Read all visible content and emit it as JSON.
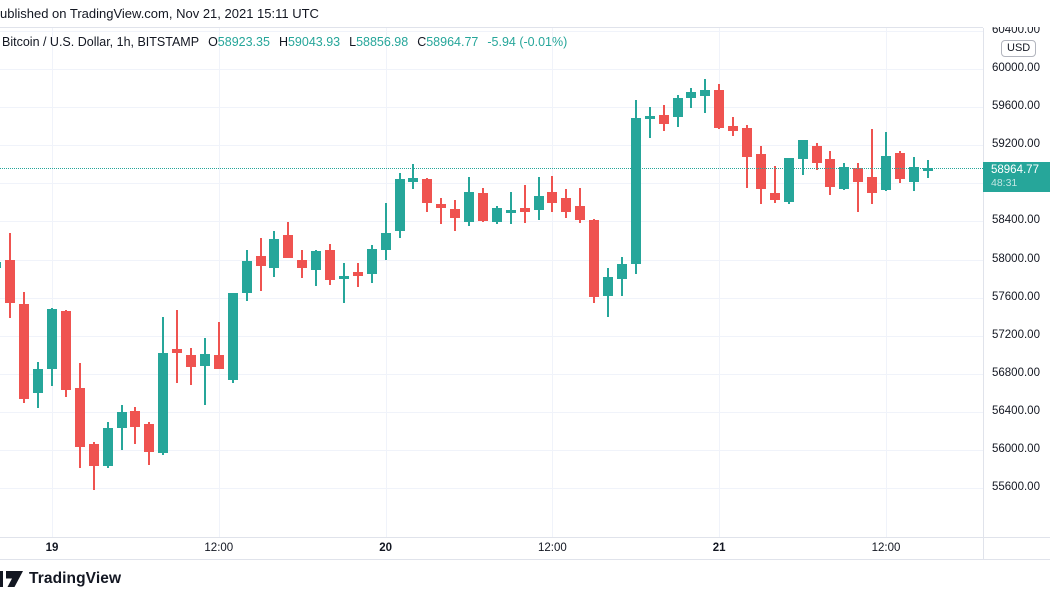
{
  "header": {
    "published_line": "ublished on TradingView.com, Nov 21, 2021 15:11 UTC",
    "symbol_line": "Bitcoin / U.S. Dollar, 1h, BITSTAMP",
    "ohlc": [
      {
        "label": "O",
        "value": "58923.35"
      },
      {
        "label": "H",
        "value": "59043.93"
      },
      {
        "label": "L",
        "value": "58856.98"
      },
      {
        "label": "C",
        "value": "58964.77"
      }
    ],
    "change": "-5.94 (-0.01%)"
  },
  "price_axis": {
    "currency_badge": "USD",
    "labels": [
      {
        "text": "60400.00",
        "price": 60400
      },
      {
        "text": "60000.00",
        "price": 60000
      },
      {
        "text": "59600.00",
        "price": 59600
      },
      {
        "text": "59200.00",
        "price": 59200
      },
      {
        "text": "58400.00",
        "price": 58400
      },
      {
        "text": "58000.00",
        "price": 58000
      },
      {
        "text": "57600.00",
        "price": 57600
      },
      {
        "text": "57200.00",
        "price": 57200
      },
      {
        "text": "56800.00",
        "price": 56800
      },
      {
        "text": "56400.00",
        "price": 56400
      },
      {
        "text": "56000.00",
        "price": 56000
      },
      {
        "text": "55600.00",
        "price": 55600
      }
    ],
    "price_tag": {
      "price": "58964.77",
      "countdown": "48:31"
    }
  },
  "time_axis": {
    "labels": [
      {
        "text": "19",
        "candle_index": 4,
        "bold": true
      },
      {
        "text": "12:00",
        "candle_index": 16,
        "bold": false
      },
      {
        "text": "20",
        "candle_index": 28,
        "bold": true
      },
      {
        "text": "12:00",
        "candle_index": 40,
        "bold": false
      },
      {
        "text": "21",
        "candle_index": 52,
        "bold": true
      },
      {
        "text": "12:00",
        "candle_index": 64,
        "bold": false
      }
    ]
  },
  "footer": {
    "brand": "TradingView"
  },
  "colors": {
    "up": "#26a69a",
    "down": "#ef5350",
    "text": "#131722",
    "grid": "#f0f3fa",
    "border": "#e0e3eb",
    "price_tag_bg": "#26a69a"
  },
  "chart_data": {
    "type": "candlestick",
    "title": "Bitcoin / U.S. Dollar",
    "interval": "1h",
    "exchange": "BITSTAMP",
    "published": "Nov 21, 2021 15:11 UTC",
    "current_price": 58964.77,
    "countdown": "48:31",
    "ylim": [
      55086,
      60440
    ],
    "y_gridline_step": 400,
    "h_gridlines": [
      60400,
      60000,
      59600,
      59200,
      58800,
      58400,
      58000,
      57600,
      57200,
      56800,
      56400,
      56000,
      55600
    ],
    "start_time": "2021-11-18 20:00",
    "step_hours": 1,
    "last_candle_ohlc": [
      58923.35,
      59043.93,
      58856.98,
      58964.77
    ],
    "candles": [
      [
        57910,
        57995,
        57900,
        57973
      ],
      [
        58000,
        58280,
        57390,
        57540
      ],
      [
        57530,
        57660,
        56490,
        56535
      ],
      [
        56600,
        56920,
        56440,
        56850
      ],
      [
        56850,
        57490,
        56670,
        57480
      ],
      [
        57460,
        57470,
        56555,
        56630
      ],
      [
        56650,
        56915,
        55810,
        56030
      ],
      [
        56060,
        56080,
        55580,
        55830
      ],
      [
        55830,
        56295,
        55810,
        56230
      ],
      [
        56230,
        56470,
        56000,
        56400
      ],
      [
        56410,
        56450,
        56060,
        56240
      ],
      [
        56275,
        56290,
        55845,
        55980
      ],
      [
        55970,
        57395,
        55950,
        57020
      ],
      [
        57060,
        57470,
        56700,
        57020
      ],
      [
        57000,
        57070,
        56680,
        56870
      ],
      [
        56880,
        57175,
        56470,
        57005
      ],
      [
        57000,
        57345,
        56845,
        56850
      ],
      [
        56735,
        57650,
        56705,
        57648
      ],
      [
        57650,
        58100,
        57565,
        57985
      ],
      [
        58035,
        58225,
        57670,
        57930
      ],
      [
        57910,
        58300,
        57815,
        58215
      ],
      [
        58255,
        58395,
        58010,
        58015
      ],
      [
        57995,
        58100,
        57805,
        57910
      ],
      [
        57890,
        58100,
        57720,
        58090
      ],
      [
        58100,
        58165,
        57730,
        57785
      ],
      [
        57795,
        57965,
        57540,
        57825
      ],
      [
        57870,
        57965,
        57710,
        57825
      ],
      [
        57845,
        58150,
        57755,
        58110
      ],
      [
        58100,
        58595,
        57995,
        58280
      ],
      [
        58300,
        58910,
        58225,
        58845
      ],
      [
        58815,
        59005,
        58740,
        58855
      ],
      [
        58845,
        58860,
        58500,
        58595
      ],
      [
        58580,
        58645,
        58370,
        58540
      ],
      [
        58530,
        58625,
        58300,
        58435
      ],
      [
        58395,
        58865,
        58350,
        58710
      ],
      [
        58700,
        58750,
        58395,
        58405
      ],
      [
        58395,
        58560,
        58370,
        58540
      ],
      [
        58490,
        58710,
        58370,
        58520
      ],
      [
        58540,
        58780,
        58380,
        58500
      ],
      [
        58520,
        58865,
        58415,
        58665
      ],
      [
        58710,
        58875,
        58500,
        58595
      ],
      [
        58645,
        58740,
        58435,
        58500
      ],
      [
        58560,
        58750,
        58380,
        58415
      ],
      [
        58415,
        58430,
        57540,
        57605
      ],
      [
        57615,
        57910,
        57395,
        57815
      ],
      [
        57795,
        58025,
        57615,
        57950
      ],
      [
        57950,
        59675,
        57845,
        59485
      ],
      [
        59475,
        59600,
        59270,
        59505
      ],
      [
        59520,
        59625,
        59350,
        59420
      ],
      [
        59500,
        59730,
        59395,
        59700
      ],
      [
        59700,
        59800,
        59590,
        59760
      ],
      [
        59720,
        59895,
        59540,
        59780
      ],
      [
        59780,
        59845,
        59365,
        59380
      ],
      [
        59400,
        59495,
        59295,
        59350
      ],
      [
        59380,
        59410,
        58750,
        59075
      ],
      [
        59105,
        59190,
        58580,
        58740
      ],
      [
        58700,
        58980,
        58595,
        58625
      ],
      [
        58605,
        59070,
        58580,
        59065
      ],
      [
        59055,
        59260,
        58885,
        59255
      ],
      [
        59190,
        59225,
        58940,
        59015
      ],
      [
        59055,
        59140,
        58675,
        58760
      ],
      [
        58740,
        59015,
        58730,
        58970
      ],
      [
        58960,
        59015,
        58500,
        58815
      ],
      [
        58865,
        59370,
        58580,
        58700
      ],
      [
        58730,
        59340,
        58720,
        59085
      ],
      [
        59120,
        59140,
        58805,
        58845
      ],
      [
        58815,
        59075,
        58720,
        58970
      ],
      [
        58923.35,
        59043.93,
        58856.98,
        58964.77
      ]
    ]
  }
}
